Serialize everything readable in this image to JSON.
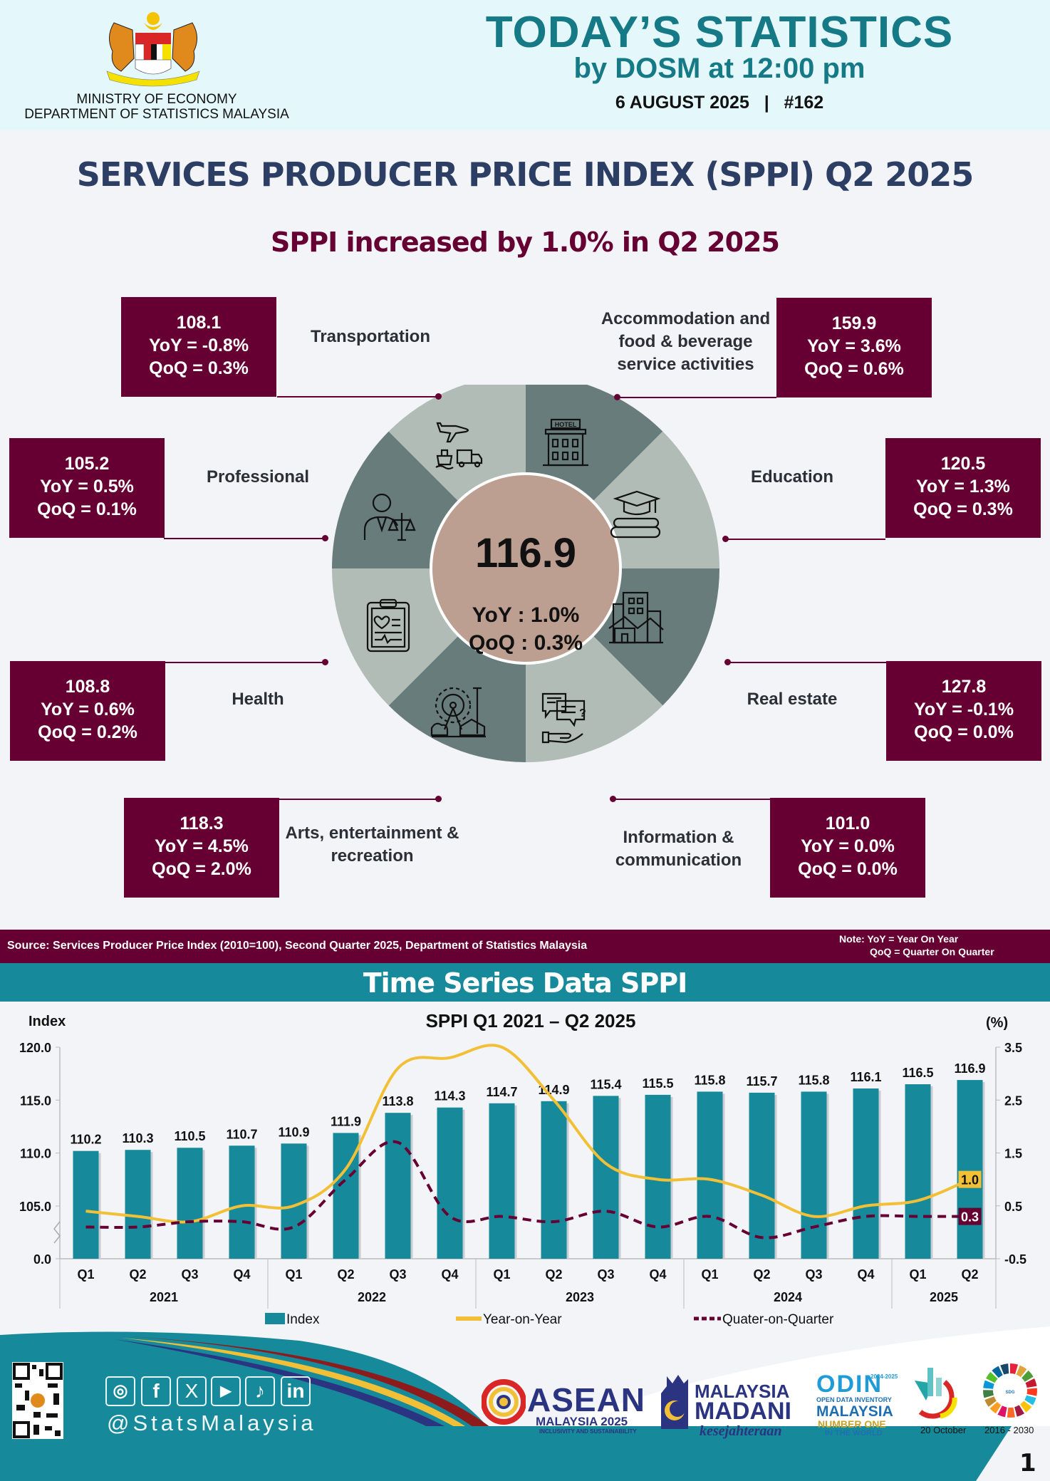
{
  "header": {
    "ministry_line1": "MINISTRY OF ECONOMY",
    "ministry_line2": "DEPARTMENT OF STATISTICS MALAYSIA",
    "title": "TODAY’S STATISTICS",
    "subtitle": "by DOSM at 12:00 pm",
    "date_issue": "6 AUGUST 2025   |   #162"
  },
  "page_heading": "SERVICES PRODUCER PRICE INDEX (SPPI) Q2 2025",
  "headline": "SPPI increased by 1.0% in Q2 2025",
  "overall": {
    "index": "116.9",
    "yoy": "YoY : 1.0%",
    "qoq": "QoQ : 0.3%"
  },
  "sectors": [
    {
      "name": "Transportation",
      "name_lines": [
        "Transportation"
      ],
      "index": "108.1",
      "yoy": "YoY = -0.8%",
      "qoq": "QoQ = 0.3%",
      "icon": "transport-icon"
    },
    {
      "name": "Accommodation and food & beverage service activities",
      "name_lines": [
        "Accommodation and",
        "food & beverage",
        "service activities"
      ],
      "index": "159.9",
      "yoy": "YoY = 3.6%",
      "qoq": "QoQ = 0.6%",
      "icon": "hotel-icon"
    },
    {
      "name": "Professional",
      "name_lines": [
        "Professional"
      ],
      "index": "105.2",
      "yoy": "YoY = 0.5%",
      "qoq": "QoQ = 0.1%",
      "icon": "professional-icon"
    },
    {
      "name": "Education",
      "name_lines": [
        "Education"
      ],
      "index": "120.5",
      "yoy": "YoY = 1.3%",
      "qoq": "QoQ = 0.3%",
      "icon": "education-icon"
    },
    {
      "name": "Health",
      "name_lines": [
        "Health"
      ],
      "index": "108.8",
      "yoy": "YoY = 0.6%",
      "qoq": "QoQ = 0.2%",
      "icon": "health-icon"
    },
    {
      "name": "Real estate",
      "name_lines": [
        "Real estate"
      ],
      "index": "127.8",
      "yoy": "YoY = -0.1%",
      "qoq": "QoQ = 0.0%",
      "icon": "real-estate-icon"
    },
    {
      "name": "Arts, entertainment & recreation",
      "name_lines": [
        "Arts, entertainment &",
        "recreation"
      ],
      "index": "118.3",
      "yoy": "YoY = 4.5%",
      "qoq": "QoQ = 2.0%",
      "icon": "ferris-wheel-icon"
    },
    {
      "name": "Information & communication",
      "name_lines": [
        "Information &",
        "communication"
      ],
      "index": "101.0",
      "yoy": "YoY = 0.0%",
      "qoq": "QoQ = 0.0%",
      "icon": "communication-icon"
    }
  ],
  "source_bar": {
    "source": "Source: Services Producer Price Index (2010=100), Second Quarter 2025, Department of Statistics  Malaysia",
    "note1": "Note: YoY = Year On Year",
    "note2": "QoQ = Quarter On Quarter"
  },
  "time_series_title": "Time Series Data SPPI",
  "colors": {
    "maroon": "#660033",
    "teal": "#168a9a",
    "yoy": "#f2c037",
    "heading": "#2c3e63",
    "wheel_dark": "#687d7b",
    "wheel_light": "#b0bcb5",
    "center": "#bd9f92"
  },
  "chart_data": {
    "type": "bar",
    "title": "SPPI Q1 2021 – Q2 2025",
    "ylabel": "Index",
    "y2label": "(%)",
    "ylim": [
      0,
      120
    ],
    "y_axis_break": [
      0,
      100
    ],
    "y_ticks": [
      "0.0",
      "105.0",
      "110.0",
      "115.0",
      "120.0"
    ],
    "y2lim": [
      -0.5,
      3.5
    ],
    "y2_ticks": [
      "-0.5",
      "0.5",
      "1.5",
      "2.5",
      "3.5"
    ],
    "categories": [
      "Q1",
      "Q2",
      "Q3",
      "Q4",
      "Q1",
      "Q2",
      "Q3",
      "Q4",
      "Q1",
      "Q2",
      "Q3",
      "Q4",
      "Q1",
      "Q2",
      "Q3",
      "Q4",
      "Q1",
      "Q2"
    ],
    "years": [
      {
        "label": "2021",
        "count": 4
      },
      {
        "label": "2022",
        "count": 4
      },
      {
        "label": "2023",
        "count": 4
      },
      {
        "label": "2024",
        "count": 4
      },
      {
        "label": "2025",
        "count": 2
      }
    ],
    "series": [
      {
        "name": "Index",
        "type": "bar",
        "axis": "left",
        "values": [
          110.2,
          110.3,
          110.5,
          110.7,
          110.9,
          111.9,
          113.8,
          114.3,
          114.7,
          114.9,
          115.4,
          115.5,
          115.8,
          115.7,
          115.8,
          116.1,
          116.5,
          116.9
        ],
        "labels": [
          "110.2",
          "110.3",
          "110.5",
          "110.7",
          "110.9",
          "111.9",
          "113.8",
          "114.3",
          "114.7",
          "114.9",
          "115.4",
          "115.5",
          "115.8",
          "115.7",
          "115.8",
          "116.1",
          "116.5",
          "116.9"
        ]
      },
      {
        "name": "Year-on-Year",
        "type": "line",
        "axis": "right",
        "values": [
          0.4,
          0.3,
          0.2,
          0.5,
          0.5,
          1.2,
          3.1,
          3.3,
          3.5,
          2.5,
          1.3,
          1.0,
          1.0,
          0.7,
          0.3,
          0.5,
          0.6,
          1.0
        ],
        "end_label": "1.0"
      },
      {
        "name": "Quater-on-Quarter",
        "type": "dashed-line",
        "axis": "right",
        "values": [
          0.1,
          0.1,
          0.2,
          0.2,
          0.1,
          1.0,
          1.7,
          0.3,
          0.3,
          0.2,
          0.4,
          0.1,
          0.3,
          -0.1,
          0.1,
          0.3,
          0.3,
          0.3
        ],
        "end_label": "0.3"
      }
    ],
    "legend": [
      "Index",
      "Year-on-Year",
      "Quater-on-Quarter"
    ],
    "legend_position": "bottom",
    "grid": false
  },
  "footer": {
    "handle": "@StatsMalaysia",
    "social": [
      "instagram-icon",
      "facebook-icon",
      "x-icon",
      "youtube-icon",
      "tiktok-icon",
      "linkedin-icon"
    ],
    "social_glyphs": [
      "◎",
      "f",
      "X",
      "▶",
      "♪",
      "in"
    ],
    "asean_title": "ASEAN",
    "asean_sub": "MALAYSIA 2025",
    "asean_tag": "INCLUSIVITY AND SUSTAINABILITY",
    "madani_1": "MALAYSIA",
    "madani_2": "MADANI",
    "madani_3": "kesejahteraan",
    "odin_1": "ODIN",
    "odin_years": "2024-2025",
    "odin_2": "OPEN DATA INVENTORY",
    "odin_3": "MALAYSIA",
    "odin_4": "NUMBER ONE",
    "odin_5": "IN THE WORLD",
    "statsday_date": "20 October",
    "sdg_years": "2016 - 2030",
    "sdg_text": "SUSTAINABLE DEVELOPMENT GOALS",
    "page_number": "1"
  }
}
